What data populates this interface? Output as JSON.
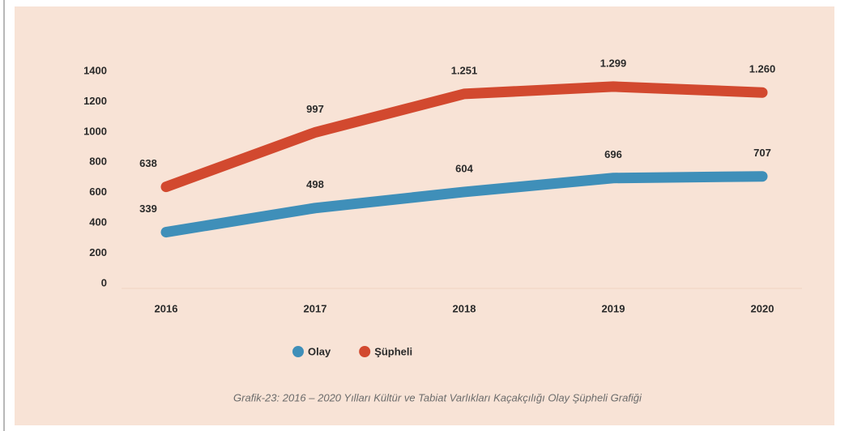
{
  "chart_data": {
    "type": "line",
    "categories": [
      "2016",
      "2017",
      "2018",
      "2019",
      "2020"
    ],
    "series": [
      {
        "name": "Olay",
        "color": "#3f8fb9",
        "values": [
          339,
          498,
          604,
          696,
          707
        ]
      },
      {
        "name": "Şüpheli",
        "color": "#d2492f",
        "values": [
          638,
          997,
          1251,
          1299,
          1260
        ],
        "value_labels": [
          "638",
          "997",
          "1.251",
          "1.299",
          "1.260"
        ]
      }
    ],
    "ylim": [
      0,
      1400
    ],
    "yticks": [
      0,
      200,
      400,
      600,
      800,
      1000,
      1200,
      1400
    ],
    "grid": false,
    "legend": "bottom",
    "caption": "Grafik-23: 2016 – 2020 Yılları Kültür ve Tabiat Varlıkları Kaçakçılığı Olay Şüpheli Grafiği"
  }
}
